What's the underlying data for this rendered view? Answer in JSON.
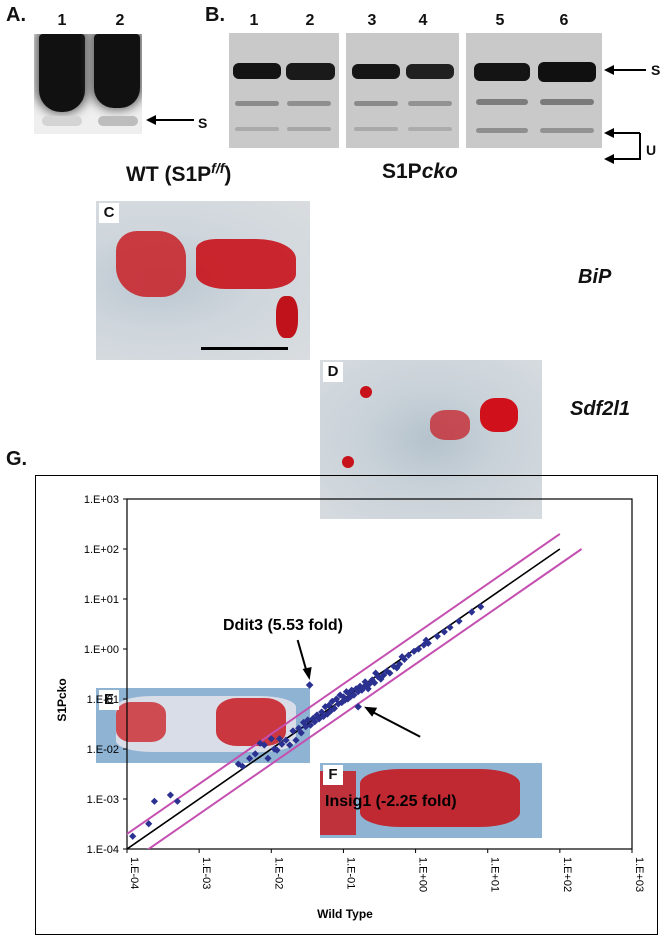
{
  "panel_a": {
    "letter": "A.",
    "lanes": [
      "1",
      "2"
    ],
    "arrow_label": "S"
  },
  "panel_b": {
    "letter": "B.",
    "lanes": [
      "1",
      "2",
      "3",
      "4",
      "5",
      "6"
    ],
    "label_s": "S",
    "label_u": "U"
  },
  "histology": {
    "wt_title_prefix": "WT (S1P",
    "wt_title_sup": "f/f",
    "wt_title_suffix": ")",
    "cko_title_prefix": "S1P",
    "cko_title_sup": "cko",
    "panel_letters": [
      "C",
      "D",
      "E",
      "F"
    ],
    "gene_bip": "BiP",
    "gene_sdf": "Sdf2l1"
  },
  "panel_g": {
    "letter": "G.",
    "annotation_up": "Ddit3 (5.53 fold)",
    "annotation_down": "Insig1 (-2.25 fold)"
  },
  "chart_data": {
    "type": "scatter",
    "xlabel": "Wild Type",
    "ylabel": "S1Pcko",
    "x_scale": "log",
    "y_scale": "log",
    "xlim": [
      0.0001,
      1000
    ],
    "ylim": [
      0.0001,
      1000
    ],
    "x_ticks": [
      "1.E-04",
      "1.E-03",
      "1.E-02",
      "1.E-01",
      "1.E+00",
      "1.E+01",
      "1.E+02",
      "1.E+03"
    ],
    "y_ticks": [
      "1.E+03",
      "1.E+02",
      "1.E+01",
      "1.E+00",
      "1.E-01",
      "1.E-02",
      "1.E-03",
      "1.E-04"
    ],
    "grid": false,
    "marker_color": "#2b3190",
    "line_color": "#000000",
    "bound_color": "#c44fb0",
    "fold_bounds": [
      2,
      0.5
    ],
    "highlighted": [
      {
        "name": "Ddit3",
        "x": 0.034,
        "y": 0.19
      },
      {
        "name": "Insig1",
        "x": 0.16,
        "y": 0.07
      }
    ],
    "points": [
      [
        0.00012,
        0.00018
      ],
      [
        0.0002,
        0.00032
      ],
      [
        0.00024,
        0.0009
      ],
      [
        0.0004,
        0.0012
      ],
      [
        0.0005,
        0.0009
      ],
      [
        0.0035,
        0.005
      ],
      [
        0.004,
        0.0045
      ],
      [
        0.005,
        0.0065
      ],
      [
        0.006,
        0.008
      ],
      [
        0.007,
        0.013
      ],
      [
        0.008,
        0.012
      ],
      [
        0.009,
        0.0065
      ],
      [
        0.01,
        0.016
      ],
      [
        0.011,
        0.01
      ],
      [
        0.012,
        0.0095
      ],
      [
        0.013,
        0.016
      ],
      [
        0.014,
        0.0125
      ],
      [
        0.016,
        0.015
      ],
      [
        0.018,
        0.012
      ],
      [
        0.02,
        0.023
      ],
      [
        0.022,
        0.015
      ],
      [
        0.024,
        0.026
      ],
      [
        0.026,
        0.021
      ],
      [
        0.028,
        0.034
      ],
      [
        0.03,
        0.028
      ],
      [
        0.032,
        0.038
      ],
      [
        0.035,
        0.03
      ],
      [
        0.038,
        0.041
      ],
      [
        0.04,
        0.035
      ],
      [
        0.043,
        0.048
      ],
      [
        0.046,
        0.04
      ],
      [
        0.05,
        0.055
      ],
      [
        0.053,
        0.045
      ],
      [
        0.056,
        0.07
      ],
      [
        0.06,
        0.05
      ],
      [
        0.063,
        0.075
      ],
      [
        0.067,
        0.058
      ],
      [
        0.07,
        0.09
      ],
      [
        0.075,
        0.065
      ],
      [
        0.08,
        0.1
      ],
      [
        0.085,
        0.08
      ],
      [
        0.09,
        0.12
      ],
      [
        0.095,
        0.085
      ],
      [
        0.1,
        0.11
      ],
      [
        0.105,
        0.095
      ],
      [
        0.11,
        0.14
      ],
      [
        0.115,
        0.1
      ],
      [
        0.12,
        0.13
      ],
      [
        0.125,
        0.11
      ],
      [
        0.13,
        0.15
      ],
      [
        0.14,
        0.12
      ],
      [
        0.15,
        0.16
      ],
      [
        0.16,
        0.14
      ],
      [
        0.17,
        0.18
      ],
      [
        0.18,
        0.15
      ],
      [
        0.19,
        0.17
      ],
      [
        0.2,
        0.22
      ],
      [
        0.21,
        0.19
      ],
      [
        0.22,
        0.16
      ],
      [
        0.23,
        0.2
      ],
      [
        0.25,
        0.24
      ],
      [
        0.27,
        0.21
      ],
      [
        0.3,
        0.28
      ],
      [
        0.33,
        0.25
      ],
      [
        0.36,
        0.3
      ],
      [
        0.4,
        0.36
      ],
      [
        0.44,
        0.33
      ],
      [
        0.5,
        0.45
      ],
      [
        0.55,
        0.42
      ],
      [
        0.6,
        0.5
      ],
      [
        0.7,
        0.62
      ],
      [
        0.8,
        0.75
      ],
      [
        0.95,
        0.9
      ],
      [
        1.1,
        1.0
      ],
      [
        1.3,
        1.2
      ],
      [
        1.5,
        1.3
      ],
      [
        2.0,
        1.8
      ],
      [
        2.5,
        2.2
      ],
      [
        3.0,
        2.7
      ],
      [
        4.0,
        3.6
      ],
      [
        6.0,
        5.5
      ],
      [
        8.0,
        7.0
      ],
      [
        1.4,
        1.5
      ],
      [
        0.65,
        0.7
      ],
      [
        0.28,
        0.33
      ]
    ]
  }
}
